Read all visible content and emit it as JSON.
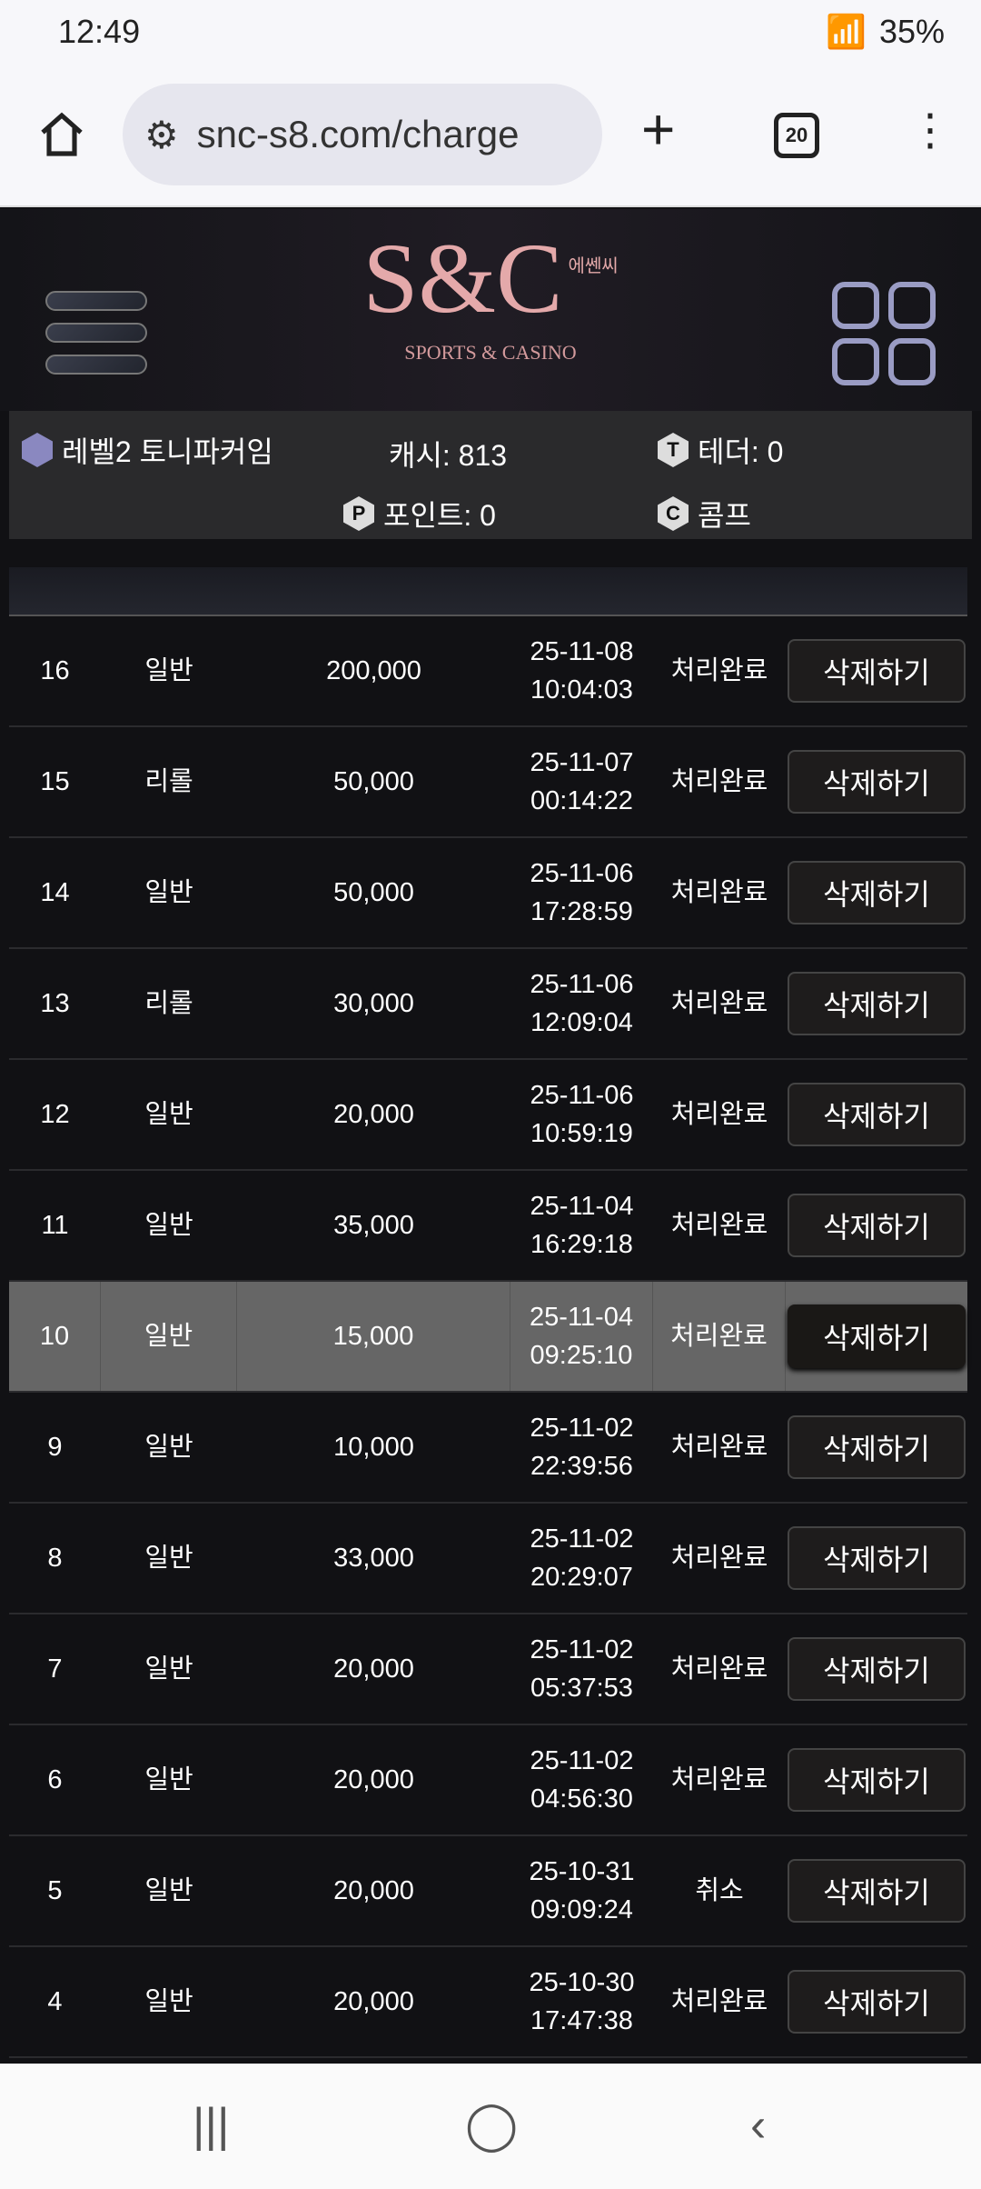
{
  "status_bar": {
    "time": "12:49",
    "battery": "35%"
  },
  "browser": {
    "url": "snc-s8.com/charge",
    "tab_count": "20"
  },
  "logo": {
    "mark": "S&C",
    "korean": "에쎈씨",
    "subtitle": "SPORTS & CASINO"
  },
  "user_info": {
    "level_name": "레벨2 토니파커임",
    "cash": "캐시: 813",
    "tether": "테더: 0",
    "points": "포인트: 0",
    "comp": "콤프"
  },
  "rows": [
    {
      "no": "16",
      "type": "일반",
      "amount": "200,000",
      "date": "25-11-08",
      "time": "10:04:03",
      "status": "처리완료",
      "action": "삭제하기"
    },
    {
      "no": "15",
      "type": "리롤",
      "amount": "50,000",
      "date": "25-11-07",
      "time": "00:14:22",
      "status": "처리완료",
      "action": "삭제하기"
    },
    {
      "no": "14",
      "type": "일반",
      "amount": "50,000",
      "date": "25-11-06",
      "time": "17:28:59",
      "status": "처리완료",
      "action": "삭제하기"
    },
    {
      "no": "13",
      "type": "리롤",
      "amount": "30,000",
      "date": "25-11-06",
      "time": "12:09:04",
      "status": "처리완료",
      "action": "삭제하기"
    },
    {
      "no": "12",
      "type": "일반",
      "amount": "20,000",
      "date": "25-11-06",
      "time": "10:59:19",
      "status": "처리완료",
      "action": "삭제하기"
    },
    {
      "no": "11",
      "type": "일반",
      "amount": "35,000",
      "date": "25-11-04",
      "time": "16:29:18",
      "status": "처리완료",
      "action": "삭제하기"
    },
    {
      "no": "10",
      "type": "일반",
      "amount": "15,000",
      "date": "25-11-04",
      "time": "09:25:10",
      "status": "처리완료",
      "action": "삭제하기",
      "highlighted": true
    },
    {
      "no": "9",
      "type": "일반",
      "amount": "10,000",
      "date": "25-11-02",
      "time": "22:39:56",
      "status": "처리완료",
      "action": "삭제하기"
    },
    {
      "no": "8",
      "type": "일반",
      "amount": "33,000",
      "date": "25-11-02",
      "time": "20:29:07",
      "status": "처리완료",
      "action": "삭제하기"
    },
    {
      "no": "7",
      "type": "일반",
      "amount": "20,000",
      "date": "25-11-02",
      "time": "05:37:53",
      "status": "처리완료",
      "action": "삭제하기"
    },
    {
      "no": "6",
      "type": "일반",
      "amount": "20,000",
      "date": "25-11-02",
      "time": "04:56:30",
      "status": "처리완료",
      "action": "삭제하기"
    },
    {
      "no": "5",
      "type": "일반",
      "amount": "20,000",
      "date": "25-10-31",
      "time": "09:09:24",
      "status": "취소",
      "action": "삭제하기"
    },
    {
      "no": "4",
      "type": "일반",
      "amount": "20,000",
      "date": "25-10-30",
      "time": "17:47:38",
      "status": "처리완료",
      "action": "삭제하기"
    }
  ]
}
